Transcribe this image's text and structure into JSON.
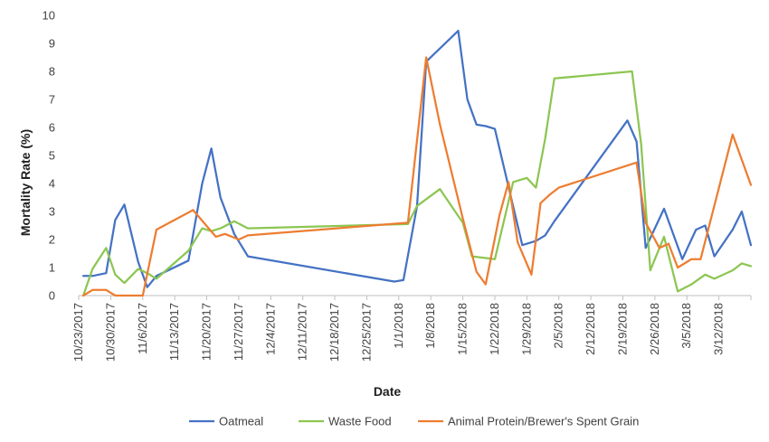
{
  "chart_data": {
    "type": "line",
    "xlabel": "Date",
    "ylabel": "Mortality Rate (%)",
    "ylim": [
      0,
      10
    ],
    "yticks": [
      0,
      1,
      2,
      3,
      4,
      5,
      6,
      7,
      8,
      9,
      10
    ],
    "xlim": [
      "2017-10-23",
      "2018-03-19"
    ],
    "xticks": [
      {
        "date": "2017-10-23",
        "label": "10/23/2017"
      },
      {
        "date": "2017-10-30",
        "label": "10/30/2017"
      },
      {
        "date": "2017-11-06",
        "label": "11/6/2017"
      },
      {
        "date": "2017-11-13",
        "label": "11/13/2017"
      },
      {
        "date": "2017-11-20",
        "label": "11/20/2017"
      },
      {
        "date": "2017-11-27",
        "label": "11/27/2017"
      },
      {
        "date": "2017-12-04",
        "label": "12/4/2017"
      },
      {
        "date": "2017-12-11",
        "label": "12/11/2017"
      },
      {
        "date": "2017-12-18",
        "label": "12/18/2017"
      },
      {
        "date": "2017-12-25",
        "label": "12/25/2017"
      },
      {
        "date": "2018-01-01",
        "label": "1/1/2018"
      },
      {
        "date": "2018-01-08",
        "label": "1/8/2018"
      },
      {
        "date": "2018-01-15",
        "label": "1/15/2018"
      },
      {
        "date": "2018-01-22",
        "label": "1/22/2018"
      },
      {
        "date": "2018-01-29",
        "label": "1/29/2018"
      },
      {
        "date": "2018-02-05",
        "label": "2/5/2018"
      },
      {
        "date": "2018-02-12",
        "label": "2/12/2018"
      },
      {
        "date": "2018-02-19",
        "label": "2/19/2018"
      },
      {
        "date": "2018-02-26",
        "label": "2/26/2018"
      },
      {
        "date": "2018-03-05",
        "label": "3/5/2018"
      },
      {
        "date": "2018-03-12",
        "label": "3/12/2018"
      }
    ],
    "grid": false,
    "legend": "bottom",
    "series": [
      {
        "name": "Oatmeal",
        "color": "#4472C4",
        "points": [
          [
            "2017-10-24",
            0.7
          ],
          [
            "2017-10-26",
            0.7
          ],
          [
            "2017-10-29",
            0.8
          ],
          [
            "2017-10-31",
            2.7
          ],
          [
            "2017-11-02",
            3.25
          ],
          [
            "2017-11-05",
            1.2
          ],
          [
            "2017-11-07",
            0.3
          ],
          [
            "2017-11-09",
            0.7
          ],
          [
            "2017-11-16",
            1.25
          ],
          [
            "2017-11-19",
            4.0
          ],
          [
            "2017-11-21",
            5.25
          ],
          [
            "2017-11-23",
            3.5
          ],
          [
            "2017-11-26",
            2.2
          ],
          [
            "2017-11-29",
            1.4
          ],
          [
            "2017-12-31",
            0.5
          ],
          [
            "2018-01-02",
            0.55
          ],
          [
            "2018-01-05",
            3.2
          ],
          [
            "2018-01-07",
            8.35
          ],
          [
            "2018-01-14",
            9.45
          ],
          [
            "2018-01-16",
            7.0
          ],
          [
            "2018-01-18",
            6.1
          ],
          [
            "2018-01-20",
            6.05
          ],
          [
            "2018-01-22",
            5.95
          ],
          [
            "2018-01-28",
            1.8
          ],
          [
            "2018-01-31",
            1.95
          ],
          [
            "2018-02-02",
            2.15
          ],
          [
            "2018-02-04",
            2.65
          ],
          [
            "2018-02-20",
            6.25
          ],
          [
            "2018-02-22",
            5.5
          ],
          [
            "2018-02-24",
            1.7
          ],
          [
            "2018-02-28",
            3.1
          ],
          [
            "2018-03-04",
            1.3
          ],
          [
            "2018-03-07",
            2.35
          ],
          [
            "2018-03-09",
            2.5
          ],
          [
            "2018-03-11",
            1.4
          ],
          [
            "2018-03-15",
            2.35
          ],
          [
            "2018-03-17",
            3.0
          ],
          [
            "2018-03-19",
            1.8
          ]
        ]
      },
      {
        "name": "Waste Food",
        "color": "#8CC652",
        "points": [
          [
            "2017-10-24",
            0.0
          ],
          [
            "2017-10-26",
            0.95
          ],
          [
            "2017-10-29",
            1.7
          ],
          [
            "2017-10-31",
            0.75
          ],
          [
            "2017-11-02",
            0.45
          ],
          [
            "2017-11-05",
            0.95
          ],
          [
            "2017-11-07",
            0.8
          ],
          [
            "2017-11-09",
            0.6
          ],
          [
            "2017-11-16",
            1.6
          ],
          [
            "2017-11-19",
            2.4
          ],
          [
            "2017-11-21",
            2.3
          ],
          [
            "2017-11-23",
            2.4
          ],
          [
            "2017-11-26",
            2.65
          ],
          [
            "2017-11-29",
            2.4
          ],
          [
            "2018-01-03",
            2.55
          ],
          [
            "2018-01-05",
            3.2
          ],
          [
            "2018-01-10",
            3.8
          ],
          [
            "2018-01-15",
            2.6
          ],
          [
            "2018-01-17",
            1.4
          ],
          [
            "2018-01-22",
            1.3
          ],
          [
            "2018-01-26",
            4.05
          ],
          [
            "2018-01-29",
            4.2
          ],
          [
            "2018-01-31",
            3.85
          ],
          [
            "2018-02-02",
            5.6
          ],
          [
            "2018-02-04",
            7.75
          ],
          [
            "2018-02-21",
            8.0
          ],
          [
            "2018-02-23",
            5.4
          ],
          [
            "2018-02-25",
            0.9
          ],
          [
            "2018-02-28",
            2.1
          ],
          [
            "2018-03-03",
            0.15
          ],
          [
            "2018-03-06",
            0.4
          ],
          [
            "2018-03-09",
            0.75
          ],
          [
            "2018-03-11",
            0.6
          ],
          [
            "2018-03-15",
            0.9
          ],
          [
            "2018-03-17",
            1.15
          ],
          [
            "2018-03-19",
            1.05
          ]
        ]
      },
      {
        "name": "Animal Protein/Brewer's Spent Grain",
        "color": "#ED7D31",
        "points": [
          [
            "2017-10-24",
            0.0
          ],
          [
            "2017-10-26",
            0.2
          ],
          [
            "2017-10-29",
            0.2
          ],
          [
            "2017-10-31",
            0.0
          ],
          [
            "2017-11-04",
            0.0
          ],
          [
            "2017-11-06",
            0.0
          ],
          [
            "2017-11-09",
            2.35
          ],
          [
            "2017-11-17",
            3.05
          ],
          [
            "2017-11-22",
            2.1
          ],
          [
            "2017-11-24",
            2.2
          ],
          [
            "2017-11-27",
            2.0
          ],
          [
            "2017-11-29",
            2.15
          ],
          [
            "2018-01-03",
            2.6
          ],
          [
            "2018-01-07",
            8.5
          ],
          [
            "2018-01-10",
            6.1
          ],
          [
            "2018-01-15",
            2.75
          ],
          [
            "2018-01-18",
            0.85
          ],
          [
            "2018-01-20",
            0.4
          ],
          [
            "2018-01-23",
            2.85
          ],
          [
            "2018-01-25",
            4.05
          ],
          [
            "2018-01-27",
            1.9
          ],
          [
            "2018-01-30",
            0.75
          ],
          [
            "2018-02-01",
            3.3
          ],
          [
            "2018-02-03",
            3.6
          ],
          [
            "2018-02-05",
            3.85
          ],
          [
            "2018-02-22",
            4.75
          ],
          [
            "2018-02-24",
            2.6
          ],
          [
            "2018-02-27",
            1.7
          ],
          [
            "2018-03-01",
            1.85
          ],
          [
            "2018-03-03",
            1.0
          ],
          [
            "2018-03-06",
            1.3
          ],
          [
            "2018-03-08",
            1.3
          ],
          [
            "2018-03-15",
            5.75
          ],
          [
            "2018-03-19",
            3.95
          ]
        ]
      }
    ]
  }
}
